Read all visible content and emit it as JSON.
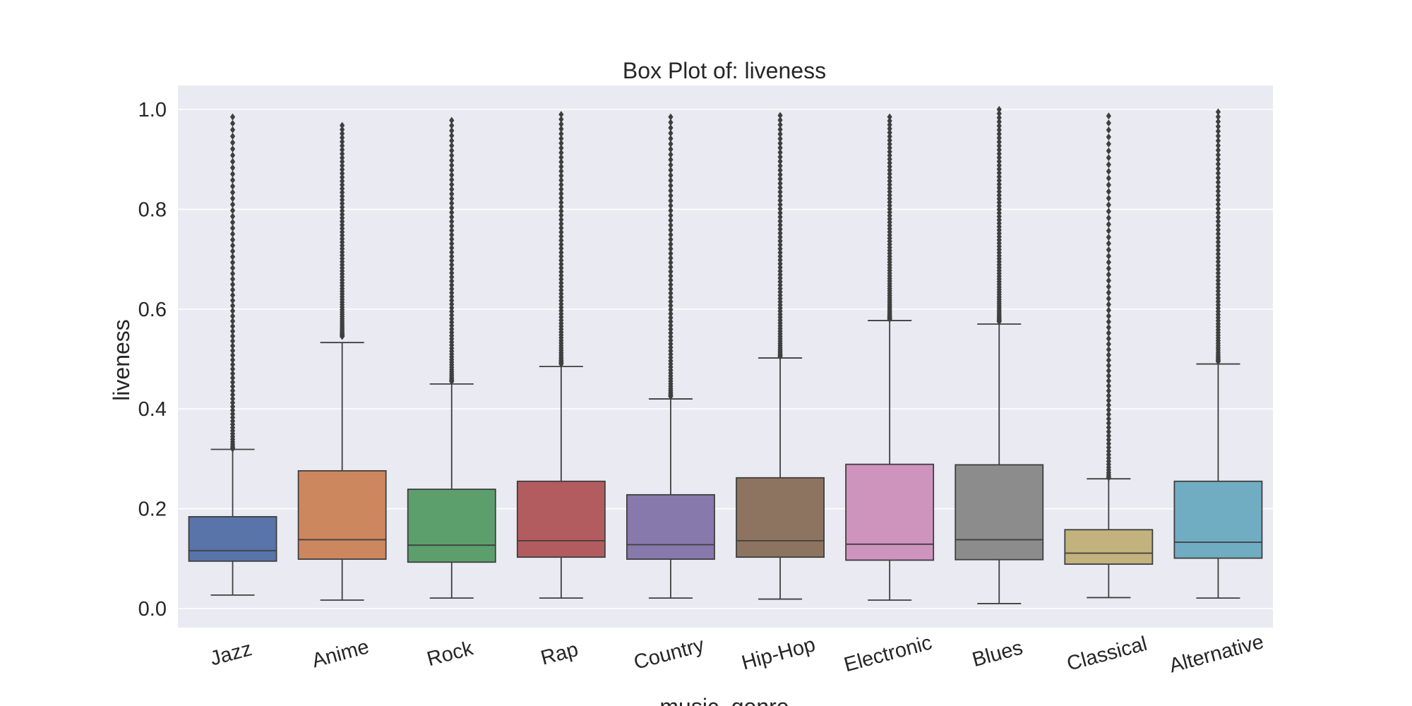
{
  "chart_data": {
    "type": "box",
    "title": "Box Plot of: liveness",
    "xlabel": "music_genre",
    "ylabel": "liveness",
    "ylim": [
      -0.037,
      1.053
    ],
    "yticks": [
      "0.0",
      "0.2",
      "0.4",
      "0.6",
      "0.8",
      "1.0"
    ],
    "grid": true,
    "legend": "none",
    "categories": [
      "Jazz",
      "Anime",
      "Rock",
      "Rap",
      "Country",
      "Hip-Hop",
      "Electronic",
      "Blues",
      "Classical",
      "Alternative"
    ],
    "colors": [
      "#5874a9",
      "#cd875f",
      "#5c9f6d",
      "#b35c5f",
      "#8779ac",
      "#8c7460",
      "#cf94bd",
      "#8c8c8c",
      "#c2b27e",
      "#71adc2"
    ],
    "boxes": [
      {
        "min": 0.027,
        "q1": 0.095,
        "median": 0.116,
        "q3": 0.184,
        "max": 0.319,
        "outliers_range": [
          0.32,
          0.985
        ]
      },
      {
        "min": 0.017,
        "q1": 0.099,
        "median": 0.138,
        "q3": 0.276,
        "max": 0.533,
        "outliers_range": [
          0.545,
          0.968
        ]
      },
      {
        "min": 0.021,
        "q1": 0.093,
        "median": 0.127,
        "q3": 0.239,
        "max": 0.45,
        "outliers_range": [
          0.455,
          0.978
        ]
      },
      {
        "min": 0.021,
        "q1": 0.103,
        "median": 0.136,
        "q3": 0.255,
        "max": 0.485,
        "outliers_range": [
          0.49,
          0.99
        ]
      },
      {
        "min": 0.021,
        "q1": 0.099,
        "median": 0.128,
        "q3": 0.228,
        "max": 0.42,
        "outliers_range": [
          0.425,
          0.985
        ]
      },
      {
        "min": 0.019,
        "q1": 0.103,
        "median": 0.136,
        "q3": 0.262,
        "max": 0.502,
        "outliers_range": [
          0.505,
          0.988
        ]
      },
      {
        "min": 0.017,
        "q1": 0.097,
        "median": 0.129,
        "q3": 0.289,
        "max": 0.577,
        "outliers_range": [
          0.58,
          0.985
        ]
      },
      {
        "min": 0.01,
        "q1": 0.098,
        "median": 0.138,
        "q3": 0.288,
        "max": 0.57,
        "outliers_range": [
          0.575,
          1.0
        ]
      },
      {
        "min": 0.022,
        "q1": 0.089,
        "median": 0.111,
        "q3": 0.158,
        "max": 0.26,
        "outliers_range": [
          0.262,
          0.987
        ]
      },
      {
        "min": 0.021,
        "q1": 0.101,
        "median": 0.133,
        "q3": 0.255,
        "max": 0.49,
        "outliers_range": [
          0.495,
          0.995
        ]
      }
    ]
  }
}
